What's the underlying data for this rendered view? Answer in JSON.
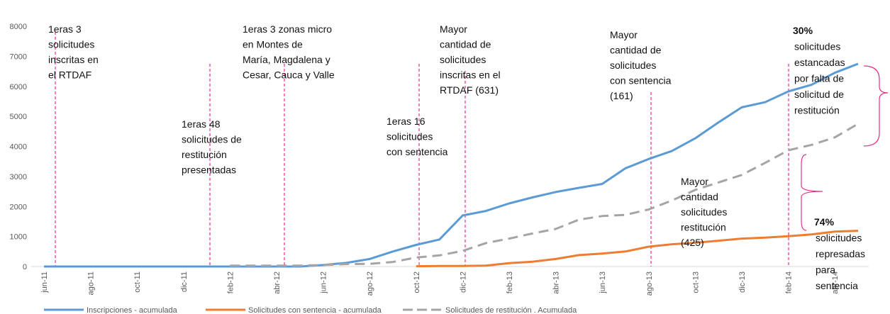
{
  "chart_data": {
    "type": "line",
    "categories": [
      "jun-11",
      null,
      "ago-11",
      null,
      "oct-11",
      null,
      "dic-11",
      null,
      "feb-12",
      null,
      "abr-12",
      null,
      "jun-12",
      null,
      "ago-12",
      null,
      "oct-12",
      null,
      "dic-12",
      null,
      "feb-13",
      null,
      "abr-13",
      null,
      "jun-13",
      null,
      "ago-13",
      null,
      "oct-13",
      null,
      "dic-13",
      null,
      "feb-14",
      null,
      "abr-14",
      null
    ],
    "series": [
      {
        "name": "Inscripciones - acumulada",
        "color": "#5b9bd5",
        "dashed": false,
        "values": [
          0,
          0,
          0,
          0,
          0,
          0,
          0,
          0,
          0,
          0,
          0,
          0,
          50,
          120,
          250,
          500,
          720,
          900,
          1700,
          1850,
          2100,
          2300,
          2480,
          2620,
          2750,
          3270,
          3580,
          3850,
          4270,
          4800,
          5300,
          5470,
          5830,
          6050,
          6450,
          6750
        ]
      },
      {
        "name": "Solicitudes con sentencia - acumulada",
        "color": "#ed7d31",
        "dashed": false,
        "values": [
          null,
          null,
          null,
          null,
          null,
          null,
          null,
          null,
          null,
          null,
          null,
          null,
          null,
          null,
          null,
          null,
          10,
          20,
          20,
          30,
          110,
          160,
          250,
          380,
          430,
          500,
          660,
          740,
          790,
          860,
          930,
          960,
          1010,
          1070,
          1160,
          1190
        ]
      },
      {
        "name": "Solicitudes de restitución . Acumulada",
        "color": "#a5a5a5",
        "dashed": true,
        "values": [
          null,
          null,
          null,
          null,
          null,
          null,
          null,
          null,
          30,
          30,
          30,
          30,
          50,
          80,
          90,
          150,
          300,
          370,
          520,
          780,
          930,
          1100,
          1250,
          1560,
          1680,
          1720,
          1900,
          2200,
          2550,
          2800,
          3050,
          3450,
          3870,
          4050,
          4300,
          4750
        ]
      }
    ],
    "ylim": [
      0,
      8000
    ],
    "yticks": [
      0,
      1000,
      2000,
      3000,
      4000,
      5000,
      6000,
      7000,
      8000
    ],
    "grid": false,
    "legend": "bottom",
    "annotations": [
      {
        "lines": [
          "1eras   3",
          "solicitudes",
          "inscritas en",
          "el RTDAF"
        ]
      },
      {
        "lines": [
          "1eras   48",
          "solicitudes de",
          "restitución",
          "presentadas"
        ]
      },
      {
        "lines": [
          "1eras  3 zonas micro",
          "en Montes de",
          "María, Magdalena y",
          "Cesar, Cauca y Valle"
        ]
      },
      {
        "lines": [
          "1eras  16",
          "solicitudes",
          "con sentencia"
        ]
      },
      {
        "lines": [
          "Mayor",
          "cantidad de",
          "solicitudes",
          "inscritas en el",
          "RTDAF (631)"
        ]
      },
      {
        "lines": [
          "Mayor",
          "cantidad de",
          "solicitudes",
          "con sentencia",
          "(161)"
        ]
      },
      {
        "lines": [
          "Mayor",
          "cantidad",
          "solicitudes",
          "restitución",
          "(425)"
        ]
      },
      {
        "heading": "30%",
        "lines": [
          "solicitudes",
          "estancadas",
          "por falta de",
          "solicitud de",
          "restitución"
        ]
      },
      {
        "heading": "74%",
        "lines": [
          "solicitudes",
          "represadas",
          "para",
          "sentencia"
        ]
      }
    ]
  }
}
